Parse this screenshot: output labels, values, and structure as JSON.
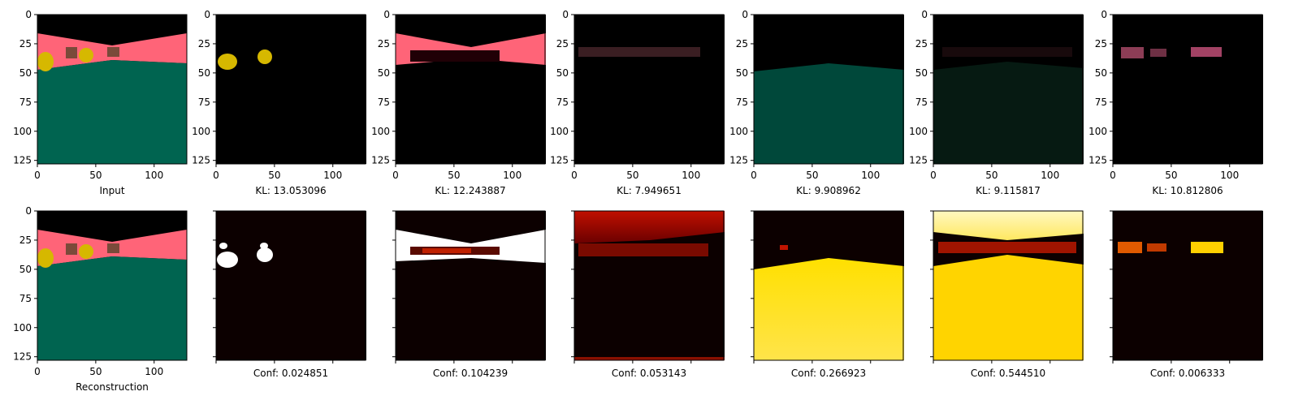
{
  "figure": {
    "row1_panels": [
      {
        "type": "input",
        "caption": "Input"
      },
      {
        "type": "mask_dark",
        "caption": "KL: 13.053096"
      },
      {
        "type": "mask_dark",
        "caption": "KL: 12.243887"
      },
      {
        "type": "mask_dark",
        "caption": "KL: 7.949651"
      },
      {
        "type": "mask_dark",
        "caption": "KL: 9.908962"
      },
      {
        "type": "mask_dark",
        "caption": "KL: 9.115817"
      },
      {
        "type": "mask_dark",
        "caption": "KL: 10.812806"
      }
    ],
    "row2_panels": [
      {
        "type": "reconstruction",
        "caption": "Reconstruction"
      },
      {
        "type": "confidence",
        "caption": "Conf: 0.024851"
      },
      {
        "type": "confidence",
        "caption": "Conf: 0.104239"
      },
      {
        "type": "confidence",
        "caption": "Conf: 0.053143"
      },
      {
        "type": "confidence",
        "caption": "Conf: 0.266923"
      },
      {
        "type": "confidence",
        "caption": "Conf: 0.544510"
      },
      {
        "type": "confidence",
        "caption": "Conf: 0.006333"
      }
    ],
    "y_ticks": [
      "0",
      "25",
      "50",
      "75",
      "100",
      "125"
    ],
    "x_ticks": [
      "0",
      "50",
      "100"
    ],
    "colors": {
      "sky": "#000000",
      "wall": "#ff6478",
      "floor": "#006450",
      "object_yellow": "#d6b800",
      "object_brown": "#7a4a3a",
      "heat_low": "#0c0000",
      "heat_mid": "#c81400",
      "heat_high": "#ffd800",
      "heat_max": "#ffffff"
    }
  }
}
